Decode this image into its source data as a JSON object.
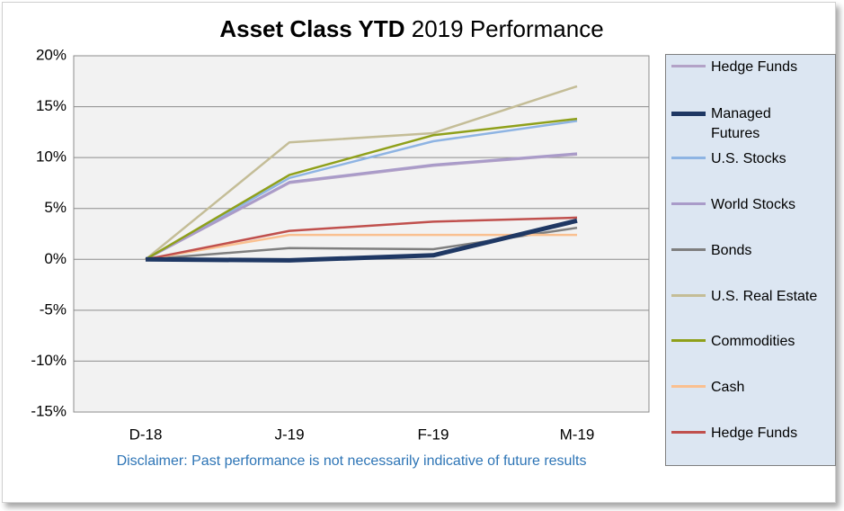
{
  "chart_data": {
    "type": "line",
    "title": [
      "Asset Class YTD",
      "2019 Performance"
    ],
    "note": "Disclaimer: Past performance is not necessarily indicative of future results",
    "categories": [
      "D-18",
      "J-19",
      "F-19",
      "M-19"
    ],
    "ylim": [
      -15,
      20
    ],
    "yticks": [
      {
        "value": -15,
        "label": "-15%"
      },
      {
        "value": -10,
        "label": "-10%"
      },
      {
        "value": -5,
        "label": "-5%"
      },
      {
        "value": 0,
        "label": "0%"
      },
      {
        "value": 5,
        "label": "5%"
      },
      {
        "value": 10,
        "label": "10%"
      },
      {
        "value": 15,
        "label": "15%"
      },
      {
        "value": 20,
        "label": "20%"
      }
    ],
    "grid": true,
    "legend": "right",
    "series": [
      {
        "name": "Hedge Funds",
        "color": "#b3a2c7",
        "values": [
          0,
          7.5,
          9.2,
          10.3
        ]
      },
      {
        "name": "Managed Futures",
        "color": "#1f3864",
        "values": [
          0,
          -0.1,
          0.4,
          3.8
        ]
      },
      {
        "name": "U.S. Stocks",
        "color": "#8eb4e3",
        "values": [
          0,
          8.0,
          11.6,
          13.6
        ]
      },
      {
        "name": "World Stocks",
        "color": "#a99bc9",
        "values": [
          0,
          7.6,
          9.3,
          10.4
        ]
      },
      {
        "name": "Bonds",
        "color": "#7f7f7f",
        "values": [
          0,
          1.1,
          1.0,
          3.1
        ]
      },
      {
        "name": "U.S. Real Estate",
        "color": "#c4bd97",
        "values": [
          0,
          11.5,
          12.4,
          17.0
        ]
      },
      {
        "name": "Commodities",
        "color": "#8fa01a",
        "values": [
          0,
          8.3,
          12.2,
          13.8
        ]
      },
      {
        "name": "Cash",
        "color": "#fac090",
        "values": [
          0,
          2.4,
          2.4,
          2.4
        ]
      },
      {
        "name": "Hedge Funds",
        "color": "#c0504d",
        "values": [
          0,
          2.8,
          3.7,
          4.1
        ]
      }
    ]
  }
}
